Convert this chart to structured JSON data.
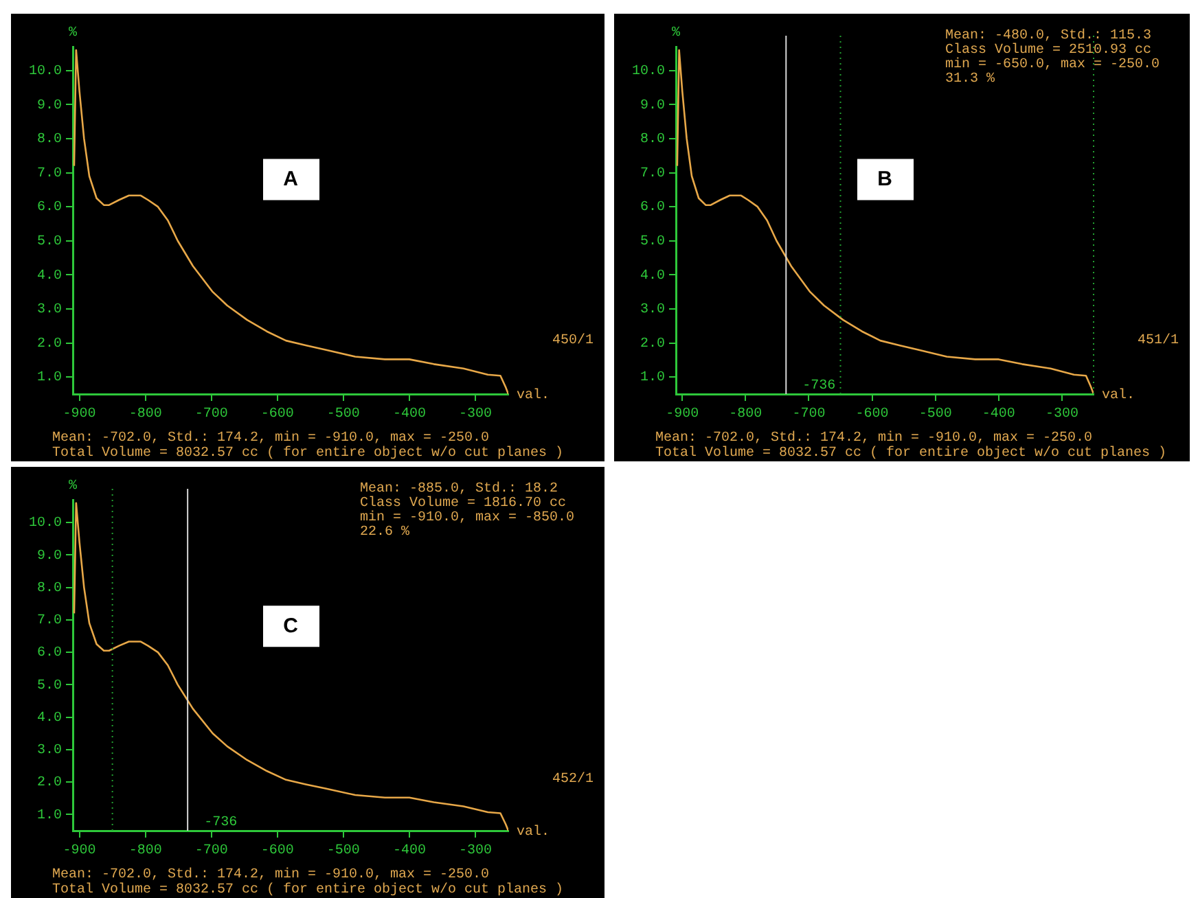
{
  "chart_data": [
    {
      "type": "line",
      "xlabel": "val.",
      "ylabel": "%",
      "xlim": [
        -910,
        -250
      ],
      "ylim": [
        0.5,
        10.7
      ],
      "xticks": [
        -900,
        -800,
        -700,
        -600,
        -500,
        -400,
        -300
      ],
      "yticks": [
        {
          "value": 1,
          "label": "1.0"
        },
        {
          "value": 2,
          "label": "2.0"
        },
        {
          "value": 3,
          "label": "3.0"
        },
        {
          "value": 4,
          "label": "4.0"
        },
        {
          "value": 5,
          "label": "5.0"
        },
        {
          "value": 6,
          "label": "6.0"
        },
        {
          "value": 7,
          "label": "7.0"
        },
        {
          "value": 8,
          "label": "8.0"
        },
        {
          "value": 9,
          "label": "9.0"
        },
        {
          "value": 10,
          "label": "10.0"
        }
      ],
      "grid": false,
      "legend": false,
      "marker": "none",
      "line_style": "solid",
      "x": [
        -908,
        -905,
        -900,
        -893,
        -885,
        -874,
        -863,
        -855,
        -840,
        -825,
        -807,
        -796,
        -781,
        -766,
        -751,
        -728,
        -698,
        -676,
        -646,
        -616,
        -587,
        -557,
        -527,
        -482,
        -437,
        -400,
        -363,
        -318,
        -281,
        -262,
        -254,
        -250
      ],
      "series": [
        {
          "color": "#e8a848",
          "values": [
            7.2,
            10.6,
            9.4,
            8.0,
            6.9,
            6.25,
            6.05,
            6.05,
            6.2,
            6.33,
            6.33,
            6.2,
            6.0,
            5.6,
            5.0,
            4.26,
            3.5,
            3.1,
            2.68,
            2.34,
            2.07,
            1.93,
            1.8,
            1.6,
            1.52,
            1.52,
            1.38,
            1.25,
            1.07,
            1.04,
            0.7,
            0.5
          ]
        }
      ],
      "annotations": [
        "450/1",
        "A",
        "Mean: -702.0, Std.: 174.2, min = -910.0, max = -250.0",
        "Total Volume = 8032.57 cc ( for entire object w/o cut planes )"
      ]
    },
    {
      "type": "line",
      "xlabel": "val.",
      "ylabel": "%",
      "xlim": [
        -910,
        -250
      ],
      "ylim": [
        0.5,
        10.7
      ],
      "xticks": [
        -900,
        -800,
        -700,
        -600,
        -500,
        -400,
        -300
      ],
      "yticks": [
        {
          "value": 1,
          "label": "1.0"
        },
        {
          "value": 2,
          "label": "2.0"
        },
        {
          "value": 3,
          "label": "3.0"
        },
        {
          "value": 4,
          "label": "4.0"
        },
        {
          "value": 5,
          "label": "5.0"
        },
        {
          "value": 6,
          "label": "6.0"
        },
        {
          "value": 7,
          "label": "7.0"
        },
        {
          "value": 8,
          "label": "8.0"
        },
        {
          "value": 9,
          "label": "9.0"
        },
        {
          "value": 10,
          "label": "10.0"
        }
      ],
      "grid": false,
      "legend": false,
      "marker": "none",
      "line_style": "solid",
      "x": [
        -908,
        -905,
        -900,
        -893,
        -885,
        -874,
        -863,
        -855,
        -840,
        -825,
        -807,
        -796,
        -781,
        -766,
        -751,
        -728,
        -698,
        -676,
        -646,
        -616,
        -587,
        -557,
        -527,
        -482,
        -437,
        -400,
        -363,
        -318,
        -281,
        -262,
        -254,
        -250
      ],
      "series": [
        {
          "color": "#e8a848",
          "values": [
            7.2,
            10.6,
            9.4,
            8.0,
            6.9,
            6.25,
            6.05,
            6.05,
            6.2,
            6.33,
            6.33,
            6.2,
            6.0,
            5.6,
            5.0,
            4.26,
            3.5,
            3.1,
            2.68,
            2.34,
            2.07,
            1.93,
            1.8,
            1.6,
            1.52,
            1.52,
            1.38,
            1.25,
            1.07,
            1.04,
            0.7,
            0.5
          ]
        }
      ],
      "ref_lines": [
        {
          "axis": "x",
          "value": -736,
          "label": "-736",
          "color": "#d8d8d8",
          "line_style": "solid"
        },
        {
          "axis": "x",
          "value": -650,
          "color": "#22a030",
          "line_style": "dotted"
        },
        {
          "axis": "x",
          "value": -250,
          "color": "#22a030",
          "line_style": "dotted"
        }
      ],
      "annotations": [
        "Mean: -480.0, Std.: 115.3",
        "Class Volume = 2510.93 cc",
        "min = -650.0, max = -250.0",
        "31.3 %",
        "451/1",
        "B",
        "Mean: -702.0, Std.: 174.2, min = -910.0, max = -250.0",
        "Total Volume = 8032.57 cc ( for entire object w/o cut planes )"
      ]
    },
    {
      "type": "line",
      "xlabel": "val.",
      "ylabel": "%",
      "xlim": [
        -910,
        -250
      ],
      "ylim": [
        0.5,
        10.7
      ],
      "xticks": [
        -900,
        -800,
        -700,
        -600,
        -500,
        -400,
        -300
      ],
      "yticks": [
        {
          "value": 1,
          "label": "1.0"
        },
        {
          "value": 2,
          "label": "2.0"
        },
        {
          "value": 3,
          "label": "3.0"
        },
        {
          "value": 4,
          "label": "4.0"
        },
        {
          "value": 5,
          "label": "5.0"
        },
        {
          "value": 6,
          "label": "6.0"
        },
        {
          "value": 7,
          "label": "7.0"
        },
        {
          "value": 8,
          "label": "8.0"
        },
        {
          "value": 9,
          "label": "9.0"
        },
        {
          "value": 10,
          "label": "10.0"
        }
      ],
      "grid": false,
      "legend": false,
      "marker": "none",
      "line_style": "solid",
      "x": [
        -908,
        -905,
        -900,
        -893,
        -885,
        -874,
        -863,
        -855,
        -840,
        -825,
        -807,
        -796,
        -781,
        -766,
        -751,
        -728,
        -698,
        -676,
        -646,
        -616,
        -587,
        -557,
        -527,
        -482,
        -437,
        -400,
        -363,
        -318,
        -281,
        -262,
        -254,
        -250
      ],
      "series": [
        {
          "color": "#e8a848",
          "values": [
            7.2,
            10.6,
            9.4,
            8.0,
            6.9,
            6.25,
            6.05,
            6.05,
            6.2,
            6.33,
            6.33,
            6.2,
            6.0,
            5.6,
            5.0,
            4.26,
            3.5,
            3.1,
            2.68,
            2.34,
            2.07,
            1.93,
            1.8,
            1.6,
            1.52,
            1.52,
            1.38,
            1.25,
            1.07,
            1.04,
            0.7,
            0.5
          ]
        }
      ],
      "ref_lines": [
        {
          "axis": "x",
          "value": -736,
          "label": "-736",
          "color": "#d8d8d8",
          "line_style": "solid"
        },
        {
          "axis": "x",
          "value": -850,
          "color": "#22a030",
          "line_style": "dotted"
        }
      ],
      "annotations": [
        "Mean: -885.0, Std.: 18.2",
        "Class Volume = 1816.70 cc",
        "min = -910.0, max = -850.0",
        "22.6 %",
        "452/1",
        "C",
        "Mean: -702.0, Std.: 174.2, min = -910.0, max = -250.0",
        "Total Volume = 8032.57 cc ( for entire object w/o cut planes )"
      ]
    }
  ]
}
